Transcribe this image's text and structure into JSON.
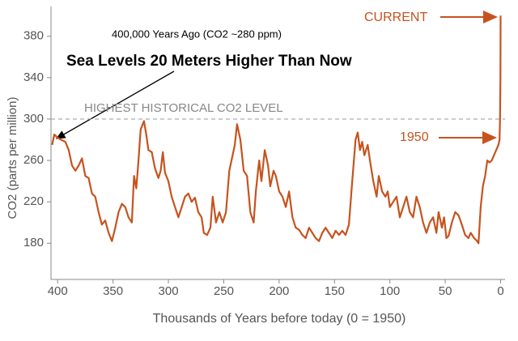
{
  "chart_data": {
    "type": "line",
    "xlabel": "Thousands of Years before today (0 = 1950)",
    "ylabel": "CO2 (parts per million)",
    "xlim": [
      406,
      -4
    ],
    "xticks": [
      400,
      350,
      300,
      250,
      200,
      150,
      100,
      50,
      0
    ],
    "ylim": [
      145,
      415
    ],
    "yticks": [
      180,
      220,
      260,
      300,
      340,
      380
    ],
    "reference_line": {
      "value": 300,
      "label": "HIGHEST HISTORICAL CO2 LEVEL"
    },
    "annotations": [
      "400,000 Years Ago (CO2 ~280 ppm)",
      "Sea Levels 20 Meters Higher Than Now",
      "CURRENT",
      "1950"
    ],
    "series": [
      {
        "name": "CO2",
        "color": "#c6531e",
        "x": [
          405,
          403,
          400,
          397,
          393,
          390,
          387,
          384,
          381,
          378,
          375,
          372,
          369,
          366,
          363,
          360,
          357,
          354,
          351,
          348,
          345,
          342,
          339,
          336,
          333,
          331,
          329,
          327,
          325,
          322,
          320,
          318,
          315,
          312,
          309,
          307,
          305,
          303,
          300,
          297,
          294,
          291,
          288,
          285,
          282,
          279,
          276,
          273,
          270,
          268,
          265,
          262,
          260,
          257,
          254,
          251,
          248,
          245,
          242,
          240,
          238,
          235,
          232,
          229,
          226,
          223,
          221,
          218,
          216,
          213,
          210,
          208,
          205,
          203,
          200,
          197,
          194,
          191,
          188,
          185,
          182,
          179,
          176,
          173,
          170,
          167,
          164,
          161,
          158,
          155,
          152,
          149,
          146,
          143,
          140,
          137,
          134,
          131,
          129,
          127,
          125,
          123,
          120,
          118,
          115,
          112,
          110,
          107,
          104,
          102,
          100,
          97,
          94,
          91,
          88,
          85,
          82,
          79,
          76,
          73,
          70,
          67,
          64,
          61,
          58,
          56,
          53,
          51,
          49,
          47,
          44,
          41,
          38,
          35,
          32,
          29,
          27,
          24,
          22,
          20,
          18,
          16,
          14,
          12,
          10,
          8,
          6,
          4,
          2,
          1,
          0.5,
          0.2,
          0
        ],
        "values": [
          275,
          285,
          282,
          280,
          278,
          270,
          255,
          250,
          255,
          262,
          245,
          243,
          228,
          225,
          210,
          198,
          202,
          190,
          182,
          195,
          210,
          218,
          215,
          205,
          200,
          245,
          233,
          260,
          290,
          298,
          285,
          270,
          268,
          252,
          243,
          250,
          268,
          248,
          240,
          225,
          215,
          205,
          215,
          225,
          228,
          220,
          224,
          210,
          205,
          190,
          188,
          195,
          225,
          200,
          210,
          200,
          210,
          250,
          265,
          275,
          295,
          280,
          250,
          245,
          210,
          200,
          230,
          260,
          240,
          270,
          255,
          235,
          250,
          245,
          230,
          225,
          215,
          230,
          205,
          195,
          193,
          188,
          185,
          195,
          190,
          185,
          182,
          190,
          195,
          190,
          185,
          192,
          188,
          192,
          188,
          198,
          240,
          280,
          287,
          270,
          278,
          265,
          275,
          260,
          240,
          225,
          245,
          230,
          225,
          230,
          215,
          220,
          225,
          205,
          215,
          225,
          210,
          205,
          225,
          215,
          200,
          190,
          200,
          205,
          190,
          210,
          195,
          205,
          185,
          187,
          200,
          210,
          207,
          198,
          188,
          185,
          190,
          185,
          183,
          180,
          215,
          235,
          245,
          260,
          258,
          260,
          265,
          270,
          275,
          280,
          300,
          340,
          400
        ]
      }
    ]
  }
}
